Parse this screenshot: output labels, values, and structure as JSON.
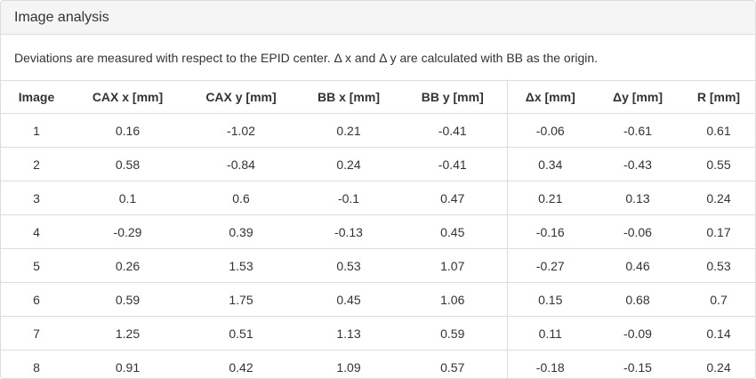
{
  "panel": {
    "title": "Image analysis",
    "description": "Deviations are measured with respect to the EPID center. Δ x and Δ y are calculated with BB as the origin."
  },
  "table": {
    "headers": [
      "Image",
      "CAX x [mm]",
      "CAX y [mm]",
      "BB x [mm]",
      "BB y [mm]",
      "Δx [mm]",
      "Δy [mm]",
      "R [mm]"
    ],
    "rows": [
      [
        "1",
        "0.16",
        "-1.02",
        "0.21",
        "-0.41",
        "-0.06",
        "-0.61",
        "0.61"
      ],
      [
        "2",
        "0.58",
        "-0.84",
        "0.24",
        "-0.41",
        "0.34",
        "-0.43",
        "0.55"
      ],
      [
        "3",
        "0.1",
        "0.6",
        "-0.1",
        "0.47",
        "0.21",
        "0.13",
        "0.24"
      ],
      [
        "4",
        "-0.29",
        "0.39",
        "-0.13",
        "0.45",
        "-0.16",
        "-0.06",
        "0.17"
      ],
      [
        "5",
        "0.26",
        "1.53",
        "0.53",
        "1.07",
        "-0.27",
        "0.46",
        "0.53"
      ],
      [
        "6",
        "0.59",
        "1.75",
        "0.45",
        "1.06",
        "0.15",
        "0.68",
        "0.7"
      ],
      [
        "7",
        "1.25",
        "0.51",
        "1.13",
        "0.59",
        "0.11",
        "-0.09",
        "0.14"
      ],
      [
        "8",
        "0.91",
        "0.42",
        "1.09",
        "0.57",
        "-0.18",
        "-0.15",
        "0.24"
      ]
    ]
  }
}
